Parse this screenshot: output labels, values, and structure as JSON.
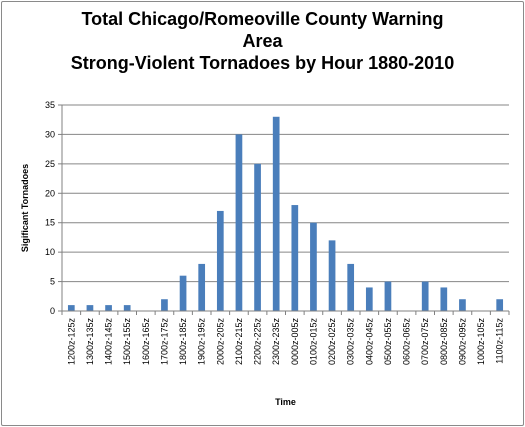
{
  "chart_data": {
    "type": "bar",
    "title_lines": [
      "Total Chicago/Romeoville County Warning",
      "Area",
      "Strong-Violent Tornadoes by Hour 1880-2010"
    ],
    "xlabel": "Time",
    "ylabel": "Sigificant Tornadoes",
    "ylim": [
      0,
      35
    ],
    "yticks": [
      0,
      5,
      10,
      15,
      20,
      25,
      30,
      35
    ],
    "grid": true,
    "legend": "none",
    "bar_color": "#4a7ebb",
    "categories": [
      "1200z-125z",
      "1300z-135z",
      "1400z-145z",
      "1500z-155z",
      "1600z-165z",
      "1700z-175z",
      "1800z-185z",
      "1900z-195z",
      "2000z-205z",
      "2100z-215z",
      "2200z-225z",
      "2300z-235z",
      "0000z-005z",
      "0100z-015z",
      "0200z-025z",
      "0300z-035z",
      "0400z-045z",
      "0500z-055z",
      "0600z-065z",
      "0700z-075z",
      "0800z-085z",
      "0900z-095z",
      "1000z-105z",
      "1100z-115z"
    ],
    "values": [
      1,
      1,
      1,
      1,
      0,
      2,
      6,
      8,
      17,
      30,
      25,
      33,
      18,
      15,
      12,
      8,
      4,
      5,
      0,
      5,
      4,
      2,
      0,
      2
    ]
  }
}
